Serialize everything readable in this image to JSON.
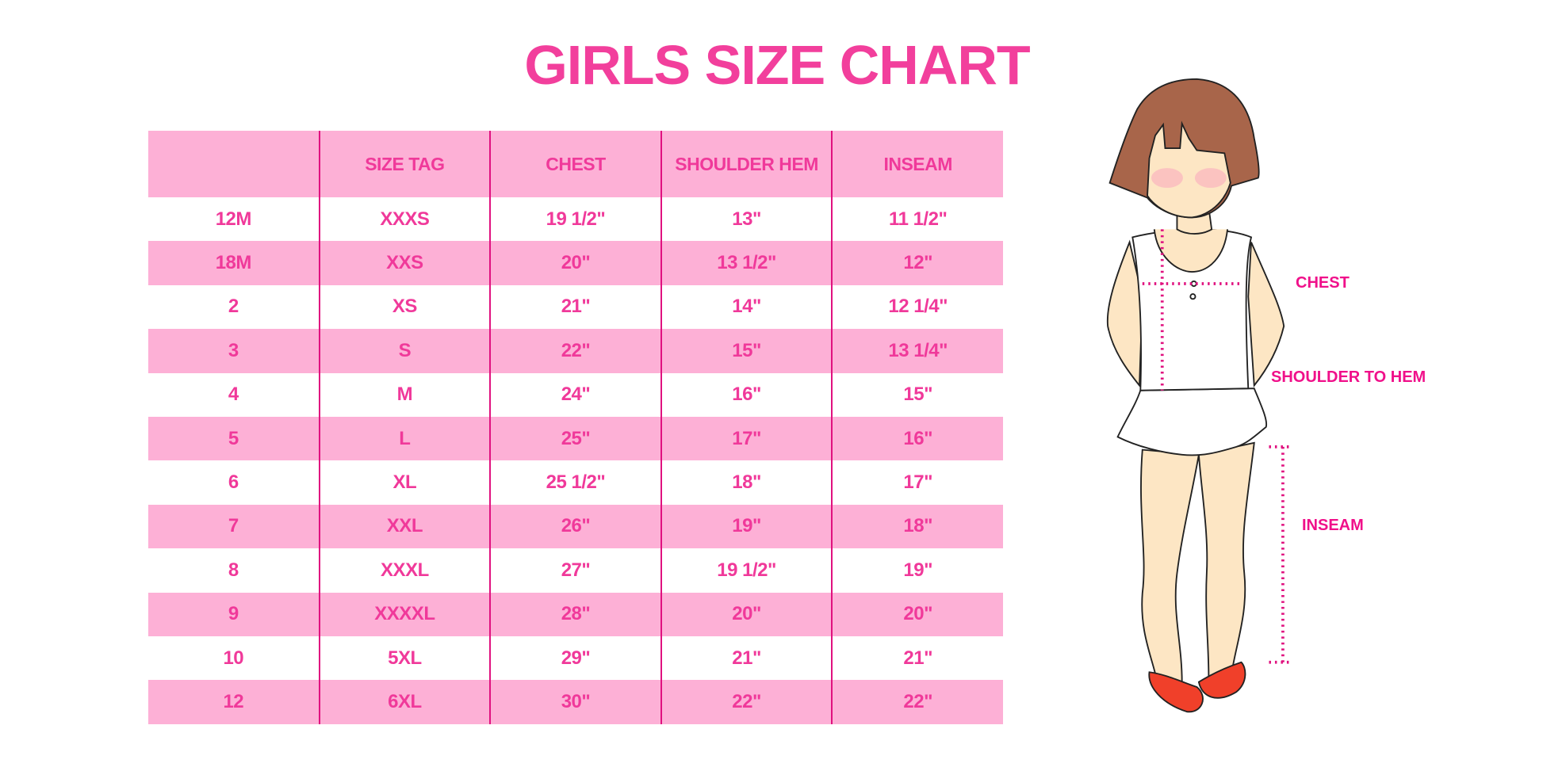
{
  "title": "GIRLS SIZE CHART",
  "table": {
    "headers": [
      "",
      "SIZE TAG",
      "CHEST",
      "SHOULDER HEM",
      "INSEAM"
    ],
    "rows": [
      [
        "12M",
        "XXXS",
        "19 1/2\"",
        "13\"",
        "11 1/2\""
      ],
      [
        "18M",
        "XXS",
        "20\"",
        "13 1/2\"",
        "12\""
      ],
      [
        "2",
        "XS",
        "21\"",
        "14\"",
        "12 1/4\""
      ],
      [
        "3",
        "S",
        "22\"",
        "15\"",
        "13 1/4\""
      ],
      [
        "4",
        "M",
        "24\"",
        "16\"",
        "15\""
      ],
      [
        "5",
        "L",
        "25\"",
        "17\"",
        "16\""
      ],
      [
        "6",
        "XL",
        "25 1/2\"",
        "18\"",
        "17\""
      ],
      [
        "7",
        "XXL",
        "26\"",
        "19\"",
        "18\""
      ],
      [
        "8",
        "XXXL",
        "27\"",
        "19 1/2\"",
        "19\""
      ],
      [
        "9",
        "XXXXL",
        "28\"",
        "20\"",
        "20\""
      ],
      [
        "10",
        "5XL",
        "29\"",
        "21\"",
        "21\""
      ],
      [
        "12",
        "6XL",
        "30\"",
        "22\"",
        "22\""
      ]
    ]
  },
  "figure": {
    "labels": {
      "chest": "CHEST",
      "shoulder_to_hem": "SHOULDER TO HEM",
      "inseam": "INSEAM"
    }
  },
  "colors": {
    "accent": "#f0399a",
    "row_fill": "#fdb0d6",
    "divider": "#e0117f",
    "hair": "#a8654a",
    "skin": "#fde6c4",
    "shoes": "#f0402a"
  }
}
